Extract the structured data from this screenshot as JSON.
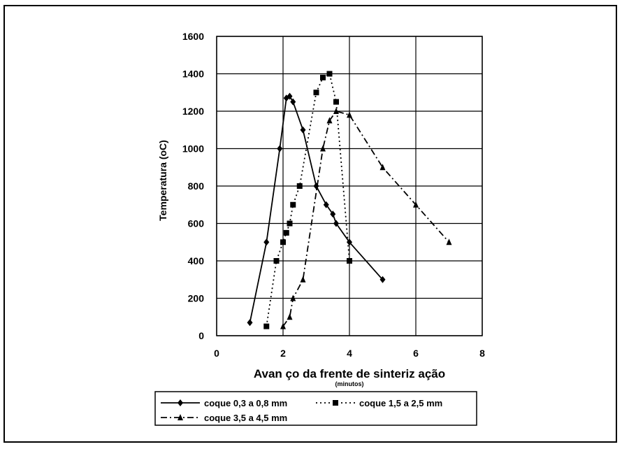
{
  "chart_data": {
    "type": "line",
    "title": "",
    "ylabel": "Temperatura (oC)",
    "xlabel": "Avan ço da frente de sinteriz ação",
    "xlabel_unit": "(minutos)",
    "xlim": [
      0,
      8
    ],
    "ylim": [
      0,
      1600
    ],
    "x_ticks": [
      0,
      2,
      4,
      6,
      8
    ],
    "y_ticks": [
      0,
      200,
      400,
      600,
      800,
      1000,
      1200,
      1400,
      1600
    ],
    "grid": true,
    "legend_position": "bottom",
    "series": [
      {
        "name": "coque 0,3 a 0,8 mm",
        "marker": "diamond",
        "line_style": "solid",
        "color": "#000000",
        "points": [
          {
            "x": 1.0,
            "y": 70
          },
          {
            "x": 1.5,
            "y": 500
          },
          {
            "x": 1.9,
            "y": 1000
          },
          {
            "x": 2.1,
            "y": 1270
          },
          {
            "x": 2.2,
            "y": 1280
          },
          {
            "x": 2.3,
            "y": 1250
          },
          {
            "x": 2.6,
            "y": 1100
          },
          {
            "x": 3.0,
            "y": 800
          },
          {
            "x": 3.3,
            "y": 700
          },
          {
            "x": 3.5,
            "y": 650
          },
          {
            "x": 3.6,
            "y": 600
          },
          {
            "x": 4.0,
            "y": 500
          },
          {
            "x": 5.0,
            "y": 300
          }
        ]
      },
      {
        "name": "coque 1,5 a 2,5 mm",
        "marker": "square",
        "line_style": "dotted",
        "color": "#000000",
        "points": [
          {
            "x": 1.5,
            "y": 50
          },
          {
            "x": 1.8,
            "y": 400
          },
          {
            "x": 2.0,
            "y": 500
          },
          {
            "x": 2.1,
            "y": 550
          },
          {
            "x": 2.2,
            "y": 600
          },
          {
            "x": 2.3,
            "y": 700
          },
          {
            "x": 2.5,
            "y": 800
          },
          {
            "x": 3.0,
            "y": 1300
          },
          {
            "x": 3.2,
            "y": 1380
          },
          {
            "x": 3.4,
            "y": 1400
          },
          {
            "x": 3.6,
            "y": 1250
          },
          {
            "x": 4.0,
            "y": 400
          }
        ]
      },
      {
        "name": "coque 3,5 a 4,5 mm",
        "marker": "triangle",
        "line_style": "dash-dot",
        "color": "#000000",
        "points": [
          {
            "x": 2.0,
            "y": 50
          },
          {
            "x": 2.2,
            "y": 100
          },
          {
            "x": 2.3,
            "y": 200
          },
          {
            "x": 2.6,
            "y": 300
          },
          {
            "x": 3.2,
            "y": 1000
          },
          {
            "x": 3.4,
            "y": 1150
          },
          {
            "x": 3.6,
            "y": 1200
          },
          {
            "x": 4.0,
            "y": 1180
          },
          {
            "x": 5.0,
            "y": 900
          },
          {
            "x": 6.0,
            "y": 700
          },
          {
            "x": 7.0,
            "y": 500
          }
        ]
      }
    ]
  }
}
